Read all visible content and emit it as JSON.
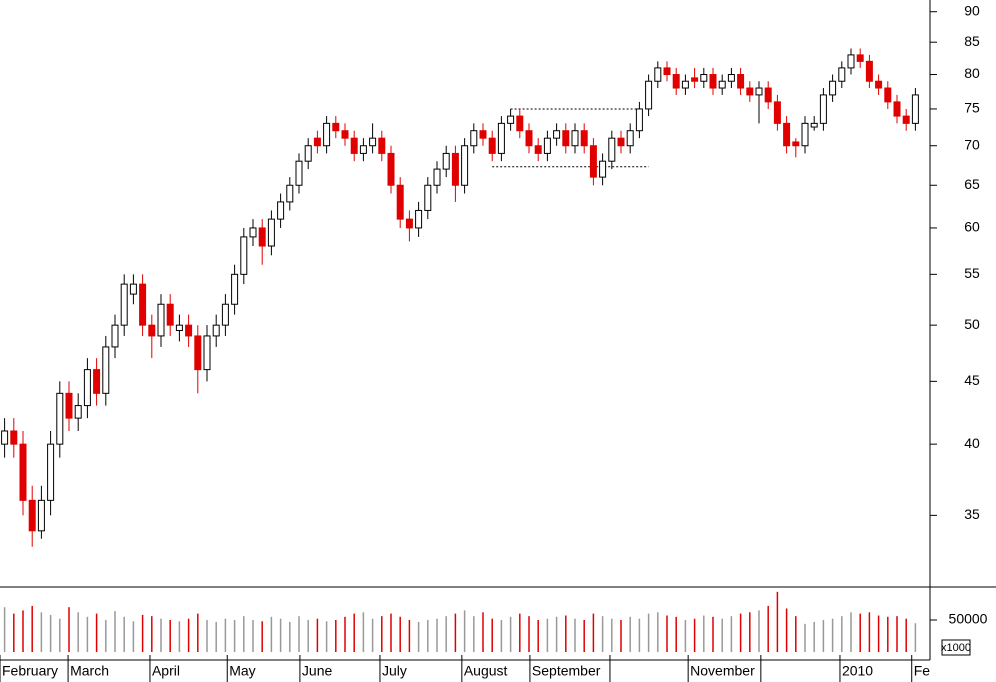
{
  "chart_data": {
    "type": "candlestick",
    "log_scale": true,
    "up_color": "#ffffff",
    "down_color": "#e00000",
    "edge_color": "#000000",
    "volume_up_color": "#999999",
    "volume_down_color": "#e00000",
    "open": [
      40,
      41,
      40,
      36,
      34,
      36,
      40,
      44,
      42,
      43,
      46,
      44,
      48,
      50,
      53,
      54,
      50,
      49,
      52,
      49.5,
      50,
      49,
      46,
      49,
      50,
      52,
      55,
      59,
      60,
      58,
      61,
      63,
      65,
      68,
      71,
      70,
      73,
      72,
      71,
      69,
      70,
      71,
      69,
      65,
      61,
      60,
      62,
      65,
      67,
      69,
      65,
      70,
      72,
      71,
      69,
      73,
      74,
      72,
      70,
      69,
      71,
      72,
      70,
      72,
      70,
      66,
      68,
      71,
      70,
      72,
      75,
      79,
      81,
      80,
      78,
      79.5,
      79,
      80,
      78,
      79,
      80,
      78,
      77,
      78,
      76,
      73,
      70.5,
      70,
      72.5,
      73,
      77,
      79,
      81,
      83,
      82,
      79,
      78,
      76,
      74,
      73
    ],
    "high": [
      42,
      42,
      41,
      37,
      37,
      41,
      45,
      45,
      44,
      47,
      47,
      49,
      51,
      55,
      55,
      55,
      51,
      53,
      53,
      51,
      51,
      50,
      50,
      51,
      53,
      56,
      60,
      61,
      61,
      62,
      64,
      66,
      69,
      71,
      72,
      74,
      74,
      73,
      72,
      71,
      73,
      72,
      70,
      66,
      62,
      63,
      66,
      68,
      70,
      70,
      71,
      73,
      73,
      72,
      74,
      75,
      75,
      73,
      71,
      72,
      73,
      73,
      73,
      73,
      71,
      69,
      72,
      72,
      73,
      76,
      80,
      82,
      82,
      81,
      80,
      81,
      81,
      81,
      80,
      81,
      81,
      79,
      79,
      79,
      77,
      74,
      71,
      74,
      74,
      78,
      80,
      82,
      84,
      84,
      83,
      80,
      79,
      77,
      75,
      78
    ],
    "low": [
      39,
      39,
      35,
      33,
      33.5,
      35,
      39,
      41,
      41,
      42,
      43,
      43,
      47,
      49,
      52,
      49,
      47,
      48,
      49,
      48.5,
      48,
      44,
      45,
      48,
      49,
      51,
      54,
      58,
      56,
      57,
      60,
      62,
      64,
      67,
      69,
      69,
      71,
      70,
      68,
      68,
      69,
      68,
      64,
      60,
      58.5,
      59,
      61,
      64,
      66,
      63,
      64,
      69,
      70,
      68,
      68,
      72,
      71,
      69,
      68,
      68,
      70,
      69,
      69,
      69,
      65,
      65,
      67,
      69,
      69,
      71,
      74,
      78,
      79,
      77,
      77,
      78,
      78,
      77,
      77,
      78,
      77,
      76,
      73,
      75,
      72,
      69,
      68.5,
      69,
      72,
      72,
      76,
      78,
      80,
      81,
      78,
      77,
      75,
      73,
      72,
      72
    ],
    "close": [
      41,
      40,
      36,
      34,
      36,
      40,
      44,
      42,
      43,
      46,
      44,
      48,
      50,
      54,
      54,
      50,
      49,
      52,
      50,
      50,
      49,
      46,
      49,
      50,
      52,
      55,
      59,
      60,
      58,
      61,
      63,
      65,
      68,
      70,
      70,
      73,
      72,
      71,
      69,
      70,
      71,
      69,
      65,
      61,
      60,
      62,
      65,
      67,
      69,
      65,
      70,
      72,
      71,
      69,
      73,
      74,
      72,
      70,
      69,
      71,
      72,
      70,
      72,
      70,
      66,
      68,
      71,
      70,
      72,
      75,
      79,
      81,
      80,
      78,
      79,
      79,
      80,
      78,
      79,
      80,
      78,
      77,
      78,
      76,
      73,
      70,
      70,
      73,
      73,
      77,
      79,
      81,
      83,
      82,
      79,
      78,
      76,
      74,
      73,
      77
    ],
    "volume": [
      70000,
      60000,
      65000,
      72000,
      62000,
      58000,
      52000,
      70000,
      62000,
      55000,
      60000,
      50000,
      64000,
      55000,
      48000,
      58000,
      56000,
      52000,
      50000,
      48000,
      52000,
      60000,
      50000,
      47000,
      52000,
      50000,
      56000,
      50000,
      48000,
      55000,
      52000,
      47000,
      56000,
      50000,
      52000,
      48000,
      50000,
      55000,
      60000,
      62000,
      52000,
      56000,
      60000,
      55000,
      50000,
      47000,
      50000,
      52000,
      56000,
      60000,
      65000,
      56000,
      62000,
      52000,
      50000,
      55000,
      60000,
      56000,
      50000,
      52000,
      55000,
      57000,
      52000,
      50000,
      60000,
      56000,
      52000,
      50000,
      55000,
      52000,
      60000,
      62000,
      57000,
      55000,
      50000,
      52000,
      57000,
      55000,
      52000,
      56000,
      60000,
      62000,
      65000,
      72000,
      94000,
      68000,
      56000,
      44000,
      47000,
      50000,
      52000,
      56000,
      62000,
      60000,
      62000,
      57000,
      55000,
      56000,
      52000,
      45000
    ],
    "ylim": [
      30.6,
      92
    ],
    "yticks": [
      35,
      40,
      45,
      50,
      55,
      60,
      65,
      70,
      75,
      80,
      85,
      90
    ],
    "vol_ylim": [
      0,
      100000
    ],
    "vol_yticks": [
      50000
    ],
    "vol_unit_label": "x1000",
    "xticks": [
      {
        "value": 0,
        "label": "February"
      },
      {
        "value": 7.4,
        "label": "March"
      },
      {
        "value": 16.3,
        "label": "April"
      },
      {
        "value": 24.7,
        "label": "May"
      },
      {
        "value": 32.6,
        "label": "June"
      },
      {
        "value": 41.3,
        "label": "July"
      },
      {
        "value": 50.2,
        "label": "August"
      },
      {
        "value": 57.6,
        "label": "September"
      },
      66.3,
      {
        "value": 74.8,
        "label": "November"
      },
      82.7,
      {
        "value": 91.3,
        "label": "2010"
      },
      {
        "value": 99.1,
        "label": "Fe"
      }
    ],
    "hlines": [
      {
        "y": 75,
        "x": [
          55,
          69
        ]
      },
      {
        "y": 67.3,
        "x": [
          53,
          70
        ]
      }
    ]
  }
}
